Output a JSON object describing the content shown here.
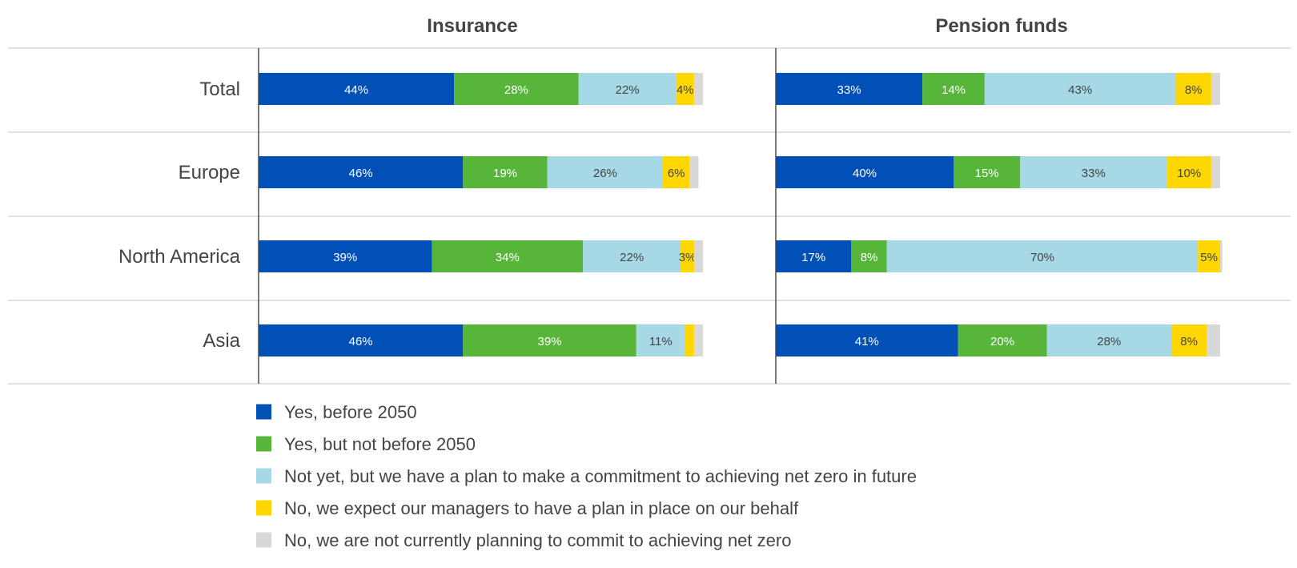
{
  "chart_data": {
    "type": "bar",
    "orientation": "horizontal",
    "stacked": true,
    "categories": [
      "Total",
      "Europe",
      "North America",
      "Asia"
    ],
    "legend_position": "bottom",
    "series": [
      {
        "name": "Yes, before 2050",
        "color": "#0050B8"
      },
      {
        "name": "Yes, but not before 2050",
        "color": "#57B63A"
      },
      {
        "name": "Not yet, but we have a plan to make a commitment to achieving net zero in future",
        "color": "#A6D8E6"
      },
      {
        "name": "No, we expect our managers to have a plan in place on our behalf",
        "color": "#FFD700"
      },
      {
        "name": "No, we are not currently planning to commit to achieving net zero",
        "color": "#D8D8D8"
      }
    ],
    "panels": [
      {
        "title": "Insurance",
        "rows": [
          {
            "values": [
              44,
              28,
              22,
              4,
              2
            ],
            "labels": [
              "44%",
              "28%",
              "22%",
              "4%",
              ""
            ]
          },
          {
            "values": [
              46,
              19,
              26,
              6,
              2
            ],
            "labels": [
              "46%",
              "19%",
              "26%",
              "6%",
              ""
            ]
          },
          {
            "values": [
              39,
              34,
              22,
              3,
              2
            ],
            "labels": [
              "39%",
              "34%",
              "22%",
              "3%",
              ""
            ]
          },
          {
            "values": [
              46,
              39,
              11,
              2,
              2
            ],
            "labels": [
              "46%",
              "39%",
              "11%",
              "",
              ""
            ]
          }
        ]
      },
      {
        "title": "Pension funds",
        "rows": [
          {
            "values": [
              33,
              14,
              43,
              8,
              2
            ],
            "labels": [
              "33%",
              "14%",
              "43%",
              "8%",
              ""
            ]
          },
          {
            "values": [
              40,
              15,
              33,
              10,
              2
            ],
            "labels": [
              "40%",
              "15%",
              "33%",
              "10%",
              ""
            ]
          },
          {
            "values": [
              17,
              8,
              70,
              5,
              0.5
            ],
            "labels": [
              "17%",
              "8%",
              "70%",
              "5%",
              ""
            ]
          },
          {
            "values": [
              41,
              20,
              28,
              8,
              3
            ],
            "labels": [
              "41%",
              "20%",
              "28%",
              "8%",
              ""
            ]
          }
        ]
      }
    ]
  }
}
